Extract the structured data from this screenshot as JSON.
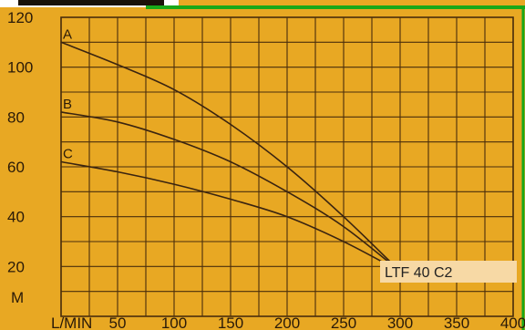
{
  "chart_data": {
    "type": "line",
    "model_label": "LTF 40 C2",
    "xlabel": "L/MIN",
    "ylabel": "M",
    "xlim": [
      0,
      400
    ],
    "ylim": [
      0,
      120
    ],
    "x_ticks": [
      50,
      100,
      150,
      200,
      250,
      300,
      350,
      400
    ],
    "y_ticks": [
      20,
      40,
      60,
      80,
      100,
      120
    ],
    "grid": true,
    "series": [
      {
        "name": "A",
        "x": [
          0,
          50,
          100,
          150,
          200,
          250,
          300
        ],
        "y": [
          110,
          101,
          91,
          77,
          60,
          40,
          18
        ]
      },
      {
        "name": "B",
        "x": [
          0,
          50,
          100,
          150,
          200,
          250,
          300
        ],
        "y": [
          82,
          78,
          71,
          62,
          50,
          36,
          18
        ]
      },
      {
        "name": "C",
        "x": [
          0,
          50,
          100,
          150,
          200,
          250,
          300
        ],
        "y": [
          62,
          58,
          53,
          47,
          40,
          30,
          18
        ]
      }
    ],
    "colors": {
      "background": "#e8a823",
      "grid": "#4a2e0c",
      "curves": "#3a2410",
      "label_box": "#f7d9a5",
      "top_bar": "#14a614"
    }
  }
}
